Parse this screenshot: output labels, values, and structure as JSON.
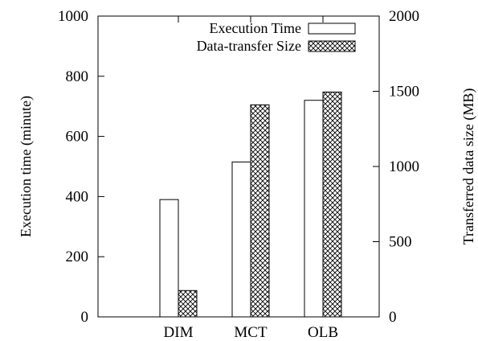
{
  "colors": {
    "axis": "#000000",
    "bar_fill_time": "#ffffff",
    "bar_stroke": "#000000",
    "hatch": "#000000"
  },
  "chart_data": {
    "type": "bar",
    "categories": [
      "DIM",
      "MCT",
      "OLB"
    ],
    "series": [
      {
        "name": "Execution Time",
        "axis": "left",
        "style": "hollow",
        "values": [
          390,
          515,
          720
        ]
      },
      {
        "name": "Data-transfer Size",
        "axis": "right",
        "style": "crosshatch",
        "values": [
          175,
          1410,
          1495
        ]
      }
    ],
    "left_axis": {
      "label": "Execution time (minute)",
      "ylim": [
        0,
        1000
      ],
      "ticks": [
        0,
        200,
        400,
        600,
        800,
        1000
      ]
    },
    "right_axis": {
      "label": "Transferred data size (MB)",
      "ylim": [
        0,
        2000
      ],
      "ticks": [
        0,
        500,
        1000,
        1500,
        2000
      ]
    },
    "legend": {
      "position": "top-right"
    },
    "grid": false
  }
}
